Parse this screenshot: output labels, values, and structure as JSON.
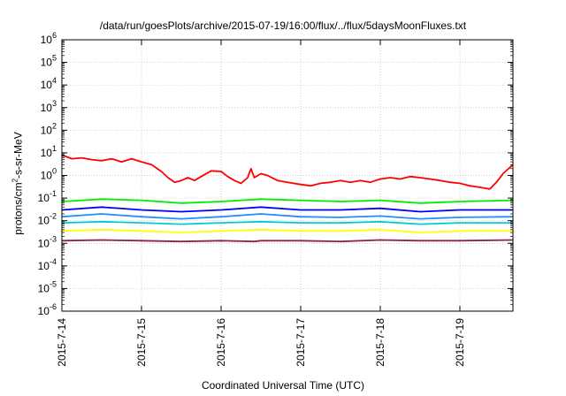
{
  "chart_data": {
    "type": "line",
    "title": "/data/run/goesPlots/archive/2015-07-19/16:00/flux/../flux/5daysMoonFluxes.txt",
    "xlabel": "Coordinated Universal Time (UTC)",
    "ylabel": {
      "pre": "protons/cm",
      "sup": "2",
      "post": "-s-sr-MeV"
    },
    "yscale": "log",
    "ylim": [
      1e-06,
      1000000.0
    ],
    "y_ticks": [
      {
        "value": 1e-06,
        "base": "10",
        "exp": "-6"
      },
      {
        "value": 1e-05,
        "base": "10",
        "exp": "-5"
      },
      {
        "value": 0.0001,
        "base": "10",
        "exp": "-4"
      },
      {
        "value": 0.001,
        "base": "10",
        "exp": "-3"
      },
      {
        "value": 0.01,
        "base": "10",
        "exp": "-2"
      },
      {
        "value": 0.1,
        "base": "10",
        "exp": "-1"
      },
      {
        "value": 1,
        "base": "10",
        "exp": "0"
      },
      {
        "value": 10,
        "base": "10",
        "exp": "1"
      },
      {
        "value": 100,
        "base": "10",
        "exp": "2"
      },
      {
        "value": 1000,
        "base": "10",
        "exp": "3"
      },
      {
        "value": 10000,
        "base": "10",
        "exp": "4"
      },
      {
        "value": 100000,
        "base": "10",
        "exp": "5"
      },
      {
        "value": 1000000,
        "base": "10",
        "exp": "6"
      }
    ],
    "xlim": [
      "2015-07-14",
      "2015-07-19 16:00"
    ],
    "x_ticks": [
      "2015-7-14",
      "2015-7-15",
      "2015-7-16",
      "2015-7-17",
      "2015-7-18",
      "2015-7-19"
    ],
    "grid": true,
    "series": [
      {
        "color": "#ff0000",
        "points": [
          [
            "2015-07-14 00:00",
            8
          ],
          [
            "2015-07-14 03:00",
            5.5
          ],
          [
            "2015-07-14 06:00",
            6
          ],
          [
            "2015-07-14 09:00",
            5
          ],
          [
            "2015-07-14 12:00",
            4.5
          ],
          [
            "2015-07-14 15:00",
            5.5
          ],
          [
            "2015-07-14 18:00",
            4
          ],
          [
            "2015-07-14 21:00",
            5.5
          ],
          [
            "2015-07-15 00:00",
            4
          ],
          [
            "2015-07-15 03:00",
            3
          ],
          [
            "2015-07-15 06:00",
            1.5
          ],
          [
            "2015-07-15 08:00",
            0.8
          ],
          [
            "2015-07-15 10:00",
            0.5
          ],
          [
            "2015-07-15 12:00",
            0.6
          ],
          [
            "2015-07-15 14:00",
            0.8
          ],
          [
            "2015-07-15 16:00",
            0.6
          ],
          [
            "2015-07-15 18:00",
            0.9
          ],
          [
            "2015-07-15 21:00",
            1.6
          ],
          [
            "2015-07-16 00:00",
            1.5
          ],
          [
            "2015-07-16 02:00",
            0.9
          ],
          [
            "2015-07-16 04:00",
            0.6
          ],
          [
            "2015-07-16 06:00",
            0.45
          ],
          [
            "2015-07-16 08:00",
            0.8
          ],
          [
            "2015-07-16 09:00",
            2
          ],
          [
            "2015-07-16 10:00",
            0.8
          ],
          [
            "2015-07-16 12:00",
            1.2
          ],
          [
            "2015-07-16 14:00",
            1.0
          ],
          [
            "2015-07-16 17:00",
            0.6
          ],
          [
            "2015-07-16 20:00",
            0.5
          ],
          [
            "2015-07-17 00:00",
            0.4
          ],
          [
            "2015-07-17 03:00",
            0.35
          ],
          [
            "2015-07-17 06:00",
            0.45
          ],
          [
            "2015-07-17 09:00",
            0.5
          ],
          [
            "2015-07-17 12:00",
            0.6
          ],
          [
            "2015-07-17 15:00",
            0.5
          ],
          [
            "2015-07-17 18:00",
            0.6
          ],
          [
            "2015-07-17 21:00",
            0.5
          ],
          [
            "2015-07-18 00:00",
            0.7
          ],
          [
            "2015-07-18 03:00",
            0.8
          ],
          [
            "2015-07-18 06:00",
            0.7
          ],
          [
            "2015-07-18 09:00",
            0.9
          ],
          [
            "2015-07-18 12:00",
            0.8
          ],
          [
            "2015-07-18 15:00",
            0.7
          ],
          [
            "2015-07-18 18:00",
            0.6
          ],
          [
            "2015-07-18 21:00",
            0.5
          ],
          [
            "2015-07-19 00:00",
            0.45
          ],
          [
            "2015-07-19 03:00",
            0.35
          ],
          [
            "2015-07-19 06:00",
            0.3
          ],
          [
            "2015-07-19 09:00",
            0.25
          ],
          [
            "2015-07-19 11:00",
            0.5
          ],
          [
            "2015-07-19 13:00",
            1.2
          ],
          [
            "2015-07-19 16:00",
            3
          ]
        ]
      },
      {
        "color": "#00ee00",
        "points": [
          [
            "2015-07-14 00:00",
            0.07
          ],
          [
            "2015-07-14 12:00",
            0.09
          ],
          [
            "2015-07-15 00:00",
            0.08
          ],
          [
            "2015-07-15 12:00",
            0.06
          ],
          [
            "2015-07-16 00:00",
            0.07
          ],
          [
            "2015-07-16 12:00",
            0.09
          ],
          [
            "2015-07-17 00:00",
            0.08
          ],
          [
            "2015-07-17 12:00",
            0.07
          ],
          [
            "2015-07-18 00:00",
            0.08
          ],
          [
            "2015-07-18 12:00",
            0.06
          ],
          [
            "2015-07-19 00:00",
            0.07
          ],
          [
            "2015-07-19 16:00",
            0.08
          ]
        ]
      },
      {
        "color": "#0000ff",
        "points": [
          [
            "2015-07-14 00:00",
            0.03
          ],
          [
            "2015-07-14 12:00",
            0.04
          ],
          [
            "2015-07-15 00:00",
            0.03
          ],
          [
            "2015-07-15 12:00",
            0.025
          ],
          [
            "2015-07-16 00:00",
            0.03
          ],
          [
            "2015-07-16 12:00",
            0.04
          ],
          [
            "2015-07-17 00:00",
            0.03
          ],
          [
            "2015-07-17 12:00",
            0.03
          ],
          [
            "2015-07-18 00:00",
            0.035
          ],
          [
            "2015-07-18 12:00",
            0.025
          ],
          [
            "2015-07-19 00:00",
            0.03
          ],
          [
            "2015-07-19 16:00",
            0.03
          ]
        ]
      },
      {
        "color": "#1e90ff",
        "points": [
          [
            "2015-07-14 00:00",
            0.015
          ],
          [
            "2015-07-14 12:00",
            0.02
          ],
          [
            "2015-07-15 00:00",
            0.015
          ],
          [
            "2015-07-15 12:00",
            0.012
          ],
          [
            "2015-07-16 00:00",
            0.015
          ],
          [
            "2015-07-16 12:00",
            0.02
          ],
          [
            "2015-07-17 00:00",
            0.015
          ],
          [
            "2015-07-17 12:00",
            0.014
          ],
          [
            "2015-07-18 00:00",
            0.016
          ],
          [
            "2015-07-18 12:00",
            0.012
          ],
          [
            "2015-07-19 00:00",
            0.014
          ],
          [
            "2015-07-19 16:00",
            0.015
          ]
        ]
      },
      {
        "color": "#00cccc",
        "points": [
          [
            "2015-07-14 00:00",
            0.008
          ],
          [
            "2015-07-14 12:00",
            0.009
          ],
          [
            "2015-07-15 00:00",
            0.008
          ],
          [
            "2015-07-15 12:00",
            0.007
          ],
          [
            "2015-07-16 00:00",
            0.008
          ],
          [
            "2015-07-16 12:00",
            0.009
          ],
          [
            "2015-07-17 00:00",
            0.008
          ],
          [
            "2015-07-17 12:00",
            0.008
          ],
          [
            "2015-07-18 00:00",
            0.009
          ],
          [
            "2015-07-18 12:00",
            0.007
          ],
          [
            "2015-07-19 00:00",
            0.008
          ],
          [
            "2015-07-19 16:00",
            0.008
          ]
        ]
      },
      {
        "color": "#ffff00",
        "points": [
          [
            "2015-07-14 00:00",
            0.0035
          ],
          [
            "2015-07-14 12:00",
            0.004
          ],
          [
            "2015-07-15 00:00",
            0.0035
          ],
          [
            "2015-07-15 12:00",
            0.003
          ],
          [
            "2015-07-16 00:00",
            0.0035
          ],
          [
            "2015-07-16 12:00",
            0.004
          ],
          [
            "2015-07-17 00:00",
            0.0035
          ],
          [
            "2015-07-17 12:00",
            0.0035
          ],
          [
            "2015-07-18 00:00",
            0.004
          ],
          [
            "2015-07-18 12:00",
            0.003
          ],
          [
            "2015-07-19 00:00",
            0.0035
          ],
          [
            "2015-07-19 16:00",
            0.0035
          ]
        ]
      },
      {
        "color": "#8b2252",
        "points": [
          [
            "2015-07-14 00:00",
            0.0013
          ],
          [
            "2015-07-14 12:00",
            0.0014
          ],
          [
            "2015-07-15 00:00",
            0.0013
          ],
          [
            "2015-07-15 12:00",
            0.0012
          ],
          [
            "2015-07-16 00:00",
            0.0013
          ],
          [
            "2015-07-16 10:00",
            0.0012
          ],
          [
            "2015-07-16 12:00",
            0.0013
          ],
          [
            "2015-07-17 00:00",
            0.0013
          ],
          [
            "2015-07-17 12:00",
            0.0012
          ],
          [
            "2015-07-18 00:00",
            0.0014
          ],
          [
            "2015-07-18 12:00",
            0.0013
          ],
          [
            "2015-07-19 00:00",
            0.0013
          ],
          [
            "2015-07-19 16:00",
            0.0014
          ]
        ]
      }
    ]
  }
}
